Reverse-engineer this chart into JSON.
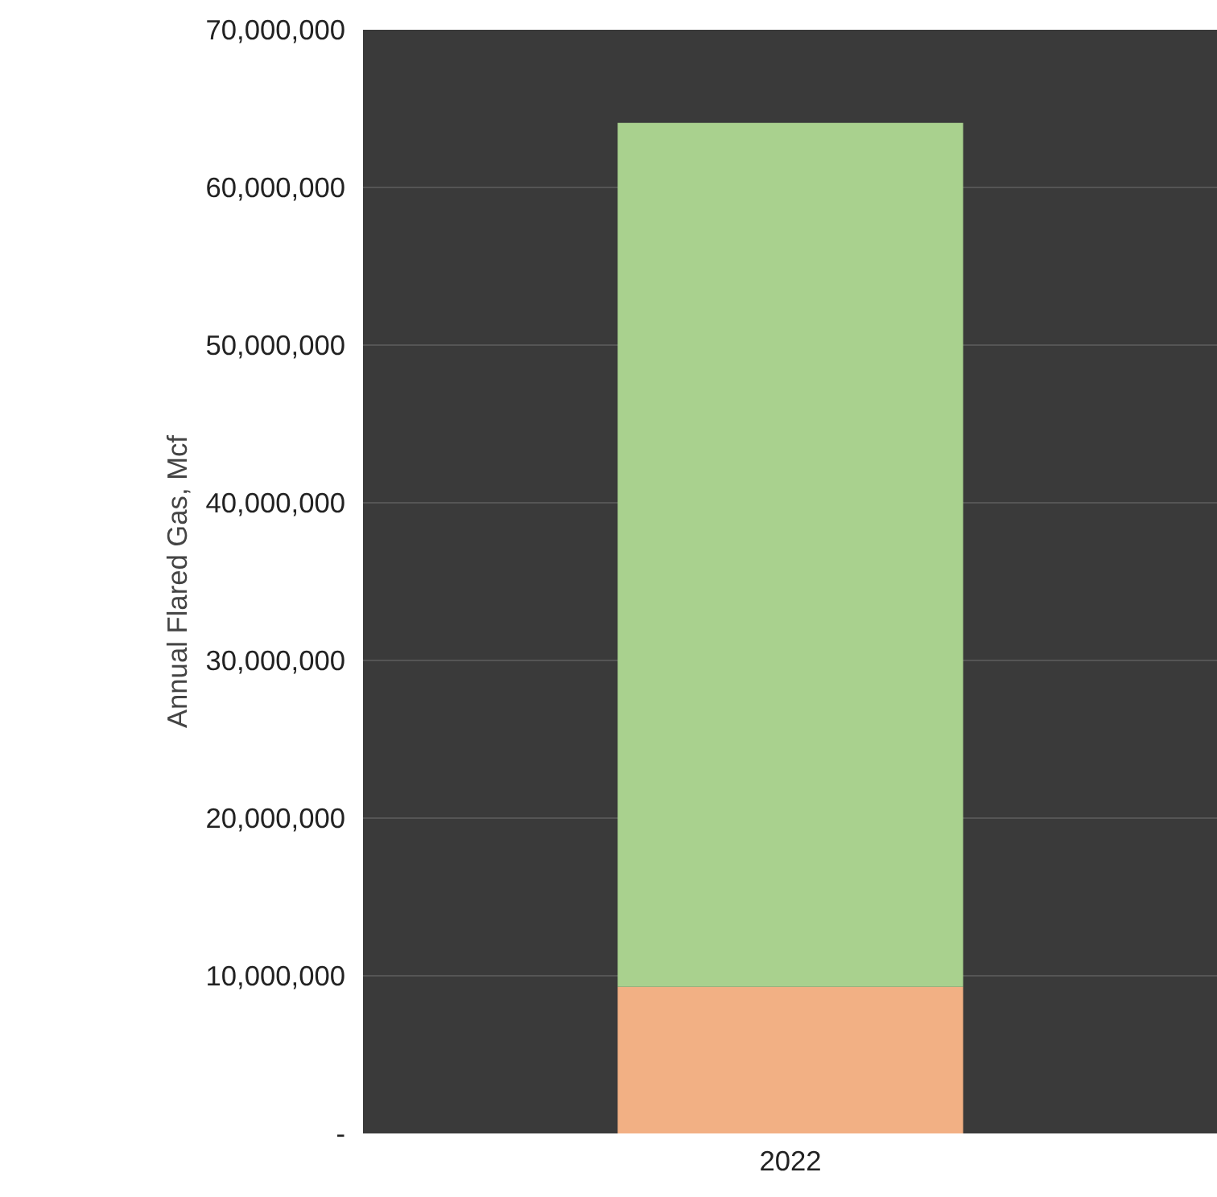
{
  "chart_data": {
    "type": "bar",
    "stacked": true,
    "ylabel": "Annual Flared Gas, Mcf",
    "categories": [
      "2022"
    ],
    "series": [
      {
        "color": "#f2b084",
        "values": [
          9300000
        ]
      },
      {
        "color": "#a9d18e",
        "values": [
          54800000
        ]
      }
    ],
    "ylim": [
      0,
      70000000
    ],
    "yticks": [
      {
        "value": 0,
        "label": "-"
      },
      {
        "value": 10000000,
        "label": "10,000,000"
      },
      {
        "value": 20000000,
        "label": "20,000,000"
      },
      {
        "value": 30000000,
        "label": "30,000,000"
      },
      {
        "value": 40000000,
        "label": "40,000,000"
      },
      {
        "value": 50000000,
        "label": "50,000,000"
      },
      {
        "value": 60000000,
        "label": "60,000,000"
      },
      {
        "value": 70000000,
        "label": "70,000,000"
      }
    ],
    "grid": "y"
  }
}
